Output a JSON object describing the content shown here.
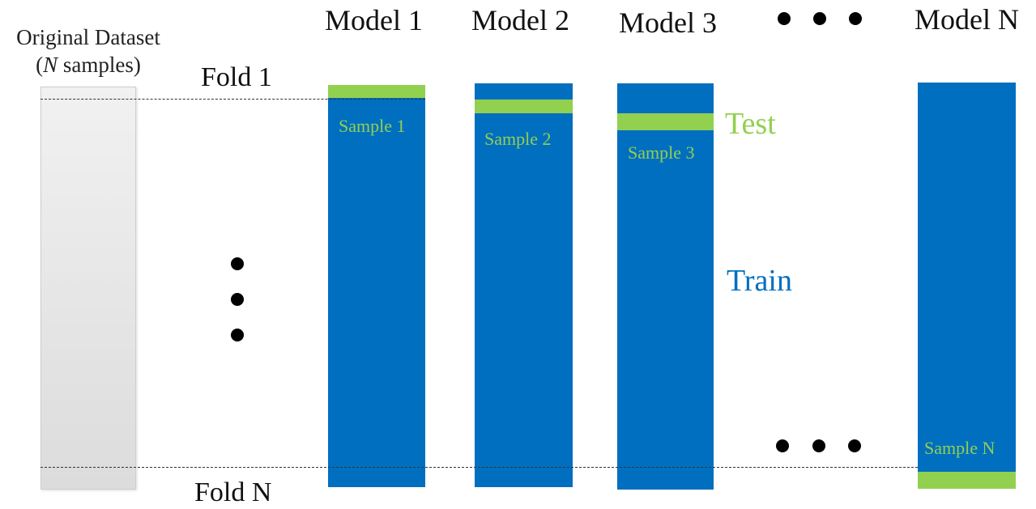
{
  "dataset": {
    "title_line1": "Original Dataset",
    "title_var": "N",
    "title_rest": " samples"
  },
  "folds": {
    "first": "Fold 1",
    "last": "Fold N"
  },
  "models": [
    {
      "title": "Model 1",
      "sample": "Sample 1"
    },
    {
      "title": "Model 2",
      "sample": "Sample 2"
    },
    {
      "title": "Model 3",
      "sample": "Sample 3"
    },
    {
      "title": "Model N",
      "sample": "Sample N"
    }
  ],
  "legend": {
    "test": "Test",
    "train": "Train"
  },
  "colors": {
    "train": "#006fc0",
    "test": "#92d050"
  }
}
